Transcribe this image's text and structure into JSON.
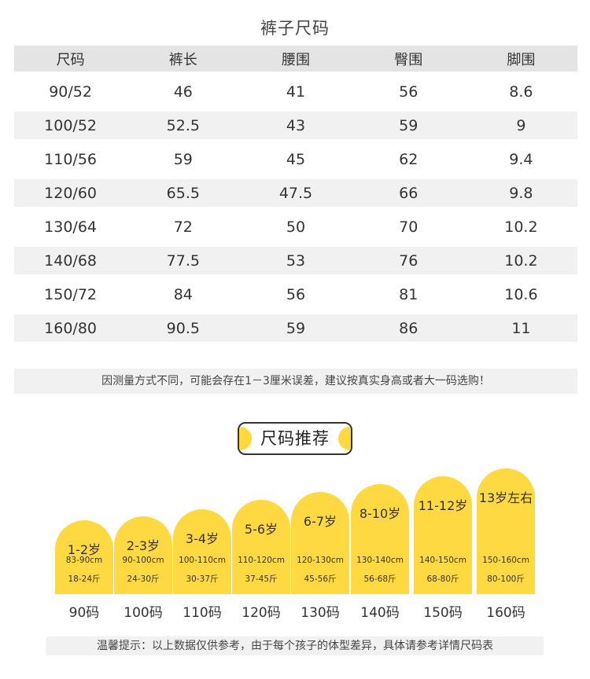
{
  "title": "裤子尺码",
  "table": {
    "headers": [
      "尺码",
      "裤长",
      "腰围",
      "臀围",
      "脚围"
    ],
    "rows": [
      [
        "90/52",
        "46",
        "41",
        "56",
        "8.6"
      ],
      [
        "100/52",
        "52.5",
        "43",
        "59",
        "9"
      ],
      [
        "110/56",
        "59",
        "45",
        "62",
        "9.4"
      ],
      [
        "120/60",
        "65.5",
        "47.5",
        "66",
        "9.8"
      ],
      [
        "130/64",
        "72",
        "50",
        "70",
        "10.2"
      ],
      [
        "140/68",
        "77.5",
        "53",
        "76",
        "10.2"
      ],
      [
        "150/72",
        "84",
        "56",
        "81",
        "10.6"
      ],
      [
        "160/80",
        "90.5",
        "59",
        "86",
        "11"
      ]
    ]
  },
  "notice": "因测量方式不同，可能会存在1－3厘米误差，建议按真实身高或者大一码选购！",
  "recommend": {
    "title": "尺码推荐",
    "items": [
      {
        "age": "1-2岁",
        "height": "83-90cm",
        "weight": "18-24斤",
        "size": "90码"
      },
      {
        "age": "2-3岁",
        "height": "90-100cm",
        "weight": "24-30斤",
        "size": "100码"
      },
      {
        "age": "3-4岁",
        "height": "100-110cm",
        "weight": "30-37斤",
        "size": "110码"
      },
      {
        "age": "5-6岁",
        "height": "110-120cm",
        "weight": "37-45斤",
        "size": "120码"
      },
      {
        "age": "6-7岁",
        "height": "120-130cm",
        "weight": "45-56斤",
        "size": "130码"
      },
      {
        "age": "8-10岁",
        "height": "130-140cm",
        "weight": "56-68斤",
        "size": "140码"
      },
      {
        "age": "11-12岁",
        "height": "140-150cm",
        "weight": "68-80斤",
        "size": "150码"
      },
      {
        "age": "13岁左右",
        "height": "150-160cm",
        "weight": "80-100斤",
        "size": "160码"
      }
    ]
  },
  "tip": "温馨提示：以上数据仅供参考，由于每个孩子的体型差异，具体请参考详情尺码表",
  "colors": {
    "accent": "#ffd942",
    "row_gray": "#f1f1f1",
    "header_gray": "#e4e4e4"
  }
}
